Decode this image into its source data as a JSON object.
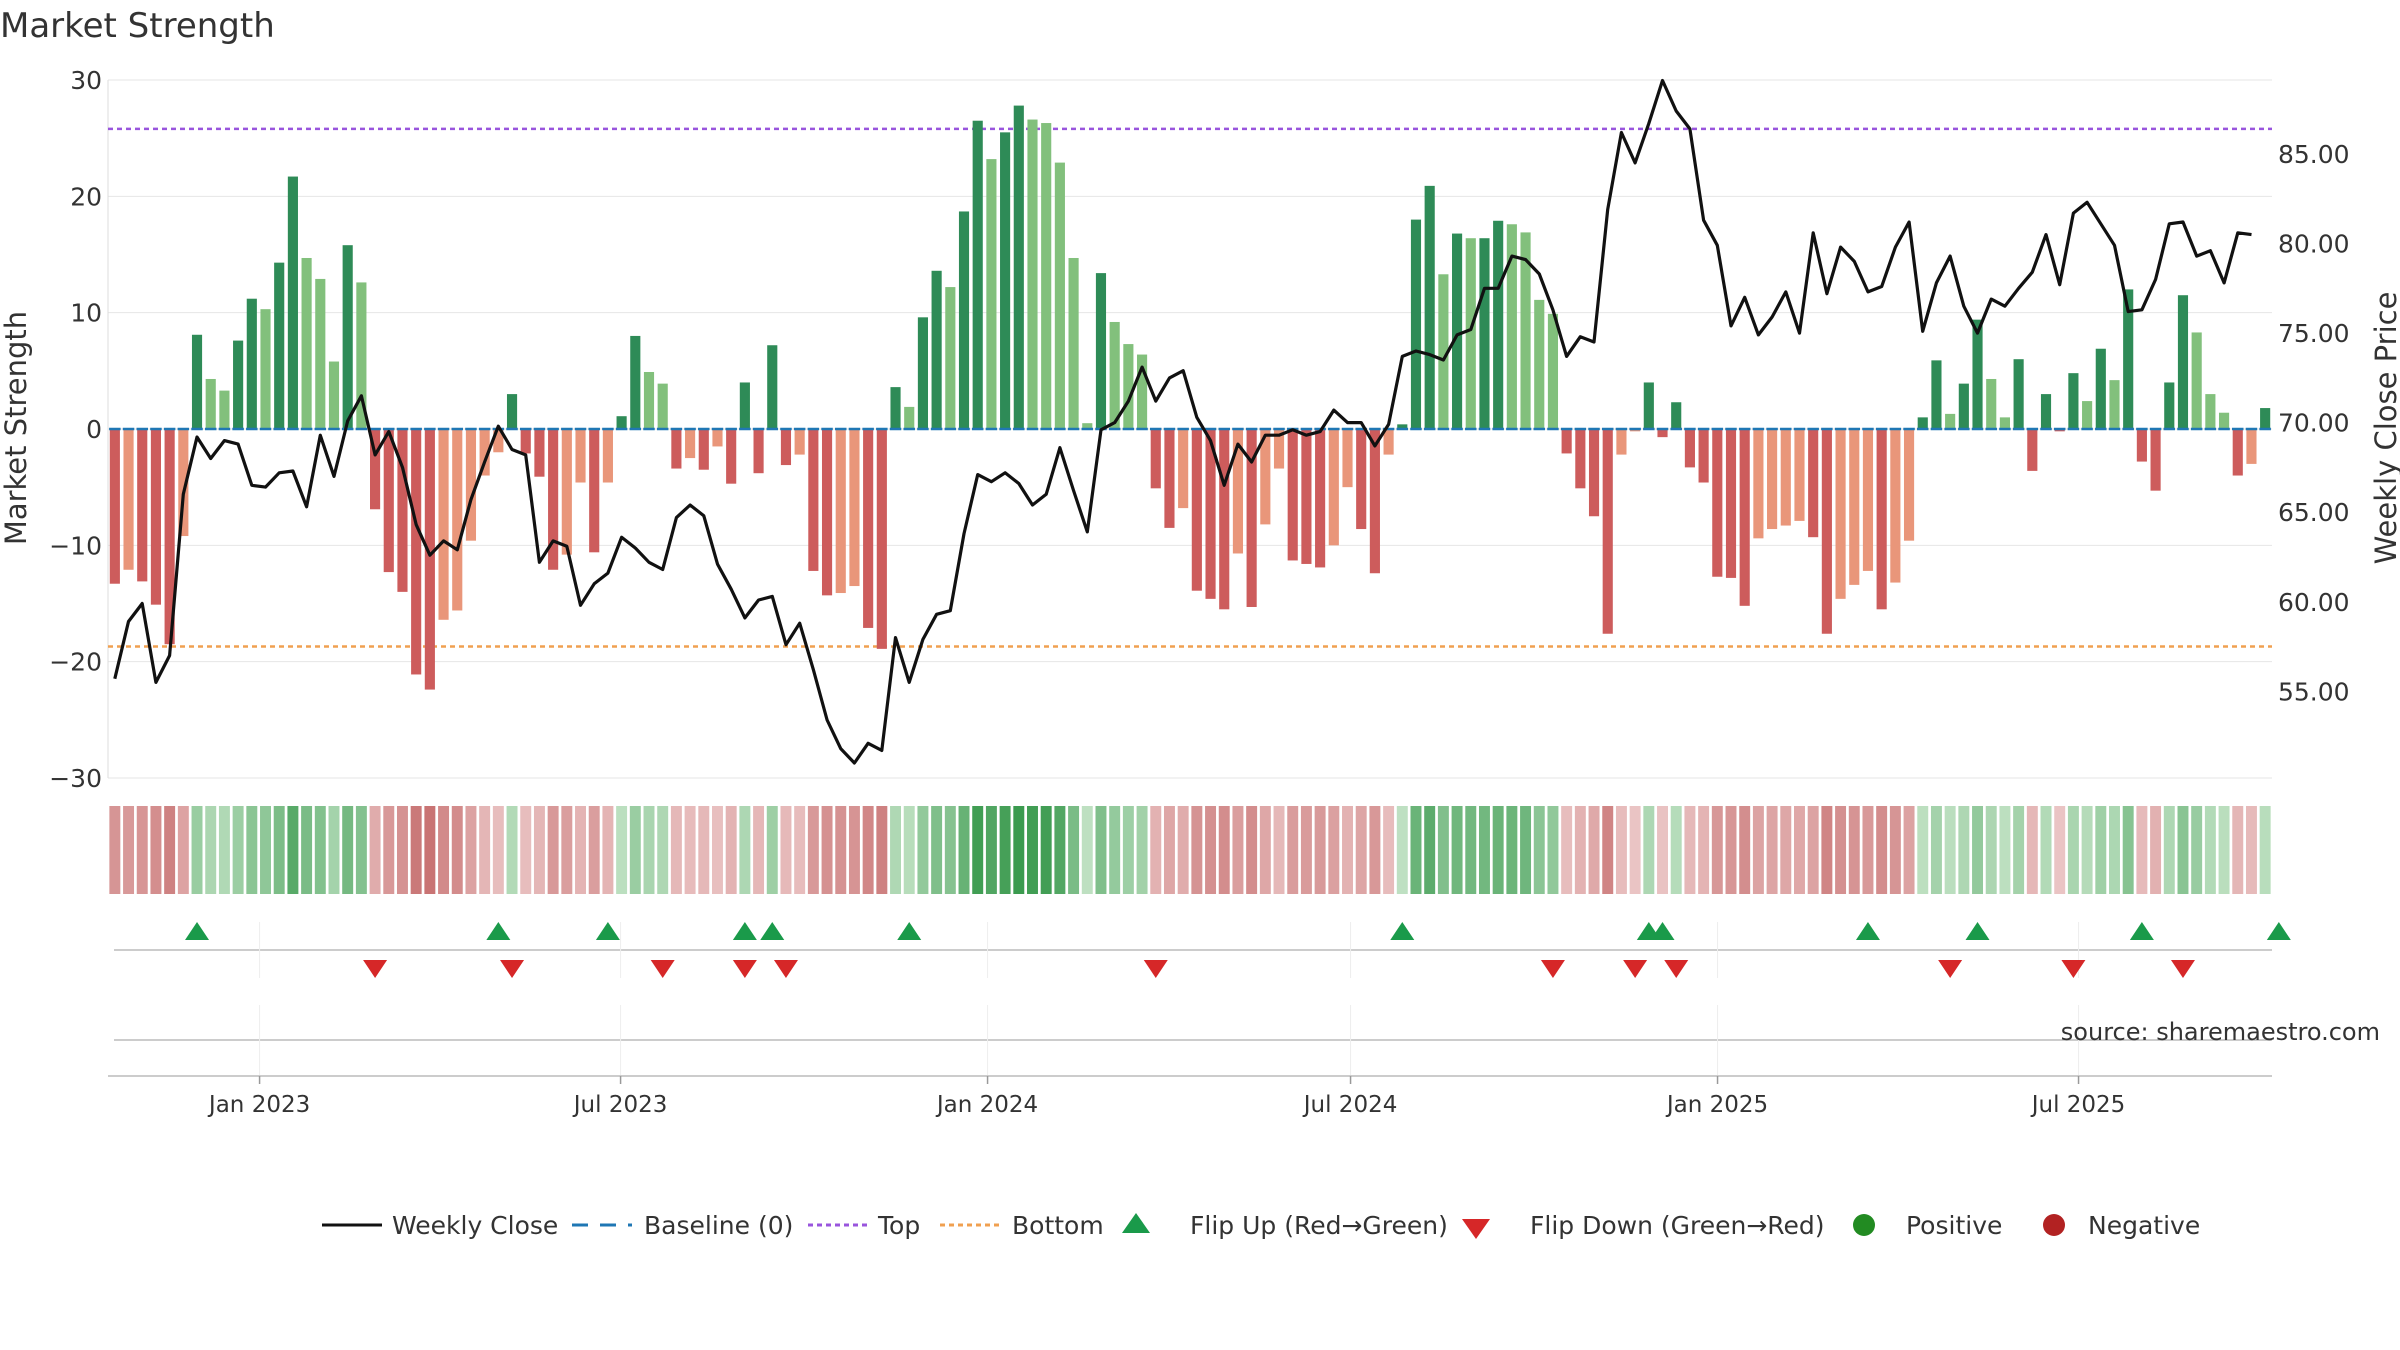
{
  "chart_data": {
    "type": "bar",
    "title": "Market Strength",
    "ylabel_left": "Market Strength",
    "ylabel_right": "Weekly Close Price",
    "ylim_left": [
      -30,
      30
    ],
    "ylim_right": [
      50.16,
      89.13
    ],
    "left_ticks": [
      30,
      20,
      10,
      0,
      -10,
      -20,
      -30
    ],
    "left_tick_labels": [
      "30",
      "20",
      "10",
      "0",
      "−10",
      "−20",
      "−30"
    ],
    "right_ticks": [
      85,
      80,
      75,
      70,
      65,
      60,
      55
    ],
    "right_tick_labels": [
      "85.00",
      "80.00",
      "75.00",
      "70.00",
      "65.00",
      "60.00",
      "55.00"
    ],
    "top_line": 25.8,
    "bottom_line": -18.7,
    "x_date_range": [
      "2022-10-17",
      "2025-10-06"
    ],
    "x_ticks": [
      {
        "label": "Jan 2023",
        "date": "2023-01-01"
      },
      {
        "label": "Jul 2023",
        "date": "2023-07-01"
      },
      {
        "label": "Jan 2024",
        "date": "2024-01-01"
      },
      {
        "label": "Jul 2024",
        "date": "2024-07-01"
      },
      {
        "label": "Jan 2025",
        "date": "2025-01-01"
      },
      {
        "label": "Jul 2025",
        "date": "2025-07-01"
      }
    ],
    "values": [
      -13.3,
      -12.1,
      -13.1,
      -15.1,
      -18.5,
      -9.2,
      8.1,
      4.3,
      3.3,
      7.6,
      11.2,
      10.3,
      14.3,
      21.7,
      14.7,
      12.9,
      5.8,
      15.8,
      12.6,
      -6.9,
      -12.3,
      -14,
      -21.1,
      -22.4,
      -16.4,
      -15.6,
      -9.6,
      -4,
      -2,
      3,
      -2.1,
      -4.1,
      -12.1,
      -10.8,
      -4.6,
      -10.6,
      -4.6,
      1.1,
      8,
      4.9,
      3.9,
      -3.4,
      -2.5,
      -3.5,
      -1.5,
      -4.7,
      4,
      -3.8,
      7.2,
      -3.1,
      -2.2,
      -12.2,
      -14.3,
      -14.1,
      -13.5,
      -17.1,
      -18.9,
      3.6,
      1.9,
      9.6,
      13.6,
      12.2,
      18.7,
      26.5,
      23.2,
      25.5,
      27.8,
      26.6,
      26.3,
      22.9,
      14.7,
      0.5,
      13.4,
      9.2,
      7.3,
      6.4,
      -5.1,
      -8.5,
      -6.8,
      -13.9,
      -14.6,
      -15.5,
      -10.7,
      -15.3,
      -8.2,
      -3.4,
      -11.3,
      -11.6,
      -11.9,
      -10,
      -5,
      -8.6,
      -12.4,
      -2.2,
      0.4,
      18,
      20.9,
      13.3,
      16.8,
      16.4,
      16.4,
      17.9,
      17.6,
      16.9,
      11.1,
      9.9,
      -2.1,
      -5.1,
      -7.5,
      -17.6,
      -2.2,
      -0.2,
      4,
      -0.7,
      2.3,
      -3.3,
      -4.6,
      -12.7,
      -12.8,
      -15.2,
      -9.4,
      -8.6,
      -8.3,
      -7.9,
      -9.3,
      -17.6,
      -14.6,
      -13.4,
      -12.2,
      -15.5,
      -13.2,
      -9.6,
      1,
      5.9,
      1.3,
      3.9,
      9.4,
      4.3,
      1,
      6,
      -3.6,
      3,
      -0.2,
      4.8,
      2.4,
      6.9,
      4.2,
      12,
      -2.8,
      -5.3,
      4,
      11.5,
      8.3,
      3,
      1.4,
      -4,
      -3,
      1.8
    ],
    "price": [
      55.7,
      58.9,
      59.9,
      55.5,
      57,
      66,
      69.2,
      68,
      69,
      68.8,
      66.5,
      66.4,
      67.2,
      67.3,
      65.3,
      69.3,
      67,
      70.1,
      71.5,
      68.2,
      69.5,
      67.5,
      64.3,
      62.6,
      63.4,
      62.9,
      65.7,
      67.8,
      69.8,
      68.5,
      68.2,
      62.2,
      63.4,
      63.1,
      59.8,
      61,
      61.6,
      63.6,
      63,
      62.2,
      61.8,
      64.7,
      65.4,
      64.8,
      62.1,
      60.7,
      59.1,
      60.1,
      60.3,
      57.6,
      58.8,
      56.2,
      53.4,
      51.8,
      51,
      52.1,
      51.7,
      58,
      55.5,
      57.9,
      59.3,
      59.5,
      63.8,
      67.1,
      66.7,
      67.2,
      66.6,
      65.4,
      66,
      68.6,
      66.2,
      63.9,
      69.6,
      70,
      71.2,
      73.1,
      71.2,
      72.5,
      72.9,
      70.3,
      69,
      66.5,
      68.8,
      67.8,
      69.3,
      69.3,
      69.6,
      69.3,
      69.5,
      70.7,
      70,
      70,
      68.7,
      69.9,
      73.7,
      74,
      73.8,
      73.5,
      74.9,
      75.2,
      77.5,
      77.5,
      79.3,
      79.1,
      78.3,
      76.3,
      73.7,
      74.8,
      74.5,
      81.9,
      86.2,
      84.5,
      86.7,
      89.1,
      87.4,
      86.4,
      81.3,
      79.9,
      75.4,
      77,
      74.9,
      75.9,
      77.3,
      75,
      80.6,
      77.2,
      79.8,
      79,
      77.3,
      77.6,
      79.8,
      81.2,
      75.1,
      77.8,
      79.3,
      76.5,
      75,
      76.9,
      76.5,
      77.5,
      78.4,
      80.5,
      77.7,
      81.7,
      82.3,
      81.1,
      79.9,
      76.2,
      76.3,
      78,
      81.1,
      81.2,
      79.3,
      79.6,
      77.8,
      80.6,
      80.5
    ],
    "flip_up_index": [
      6,
      28,
      36,
      46,
      48,
      58,
      94,
      112,
      113,
      128,
      136,
      148,
      158
    ],
    "flip_down_index": [
      19,
      29,
      40,
      46,
      49,
      76,
      105,
      111,
      114,
      134,
      143,
      151
    ],
    "legend": [
      "Weekly Close",
      "Baseline (0)",
      "Top",
      "Bottom",
      "Flip Up (Red→Green)",
      "Flip Down (Green→Red)",
      "Positive",
      "Negative"
    ],
    "source_text": "source: sharemaestro.com"
  },
  "colors": {
    "pos_strong": "#2e8b57",
    "pos_light": "#82c07c",
    "neg_strong": "#cd5c5c",
    "neg_light": "#e9967a",
    "top_line": "#9955dd",
    "bottom_line": "#f0a050",
    "baseline": "#1f77b4",
    "price_line": "#111111",
    "flip_up": "#1a9a4a",
    "flip_down": "#d62728",
    "legend_positive": "#228b22",
    "legend_negative": "#b22222"
  }
}
